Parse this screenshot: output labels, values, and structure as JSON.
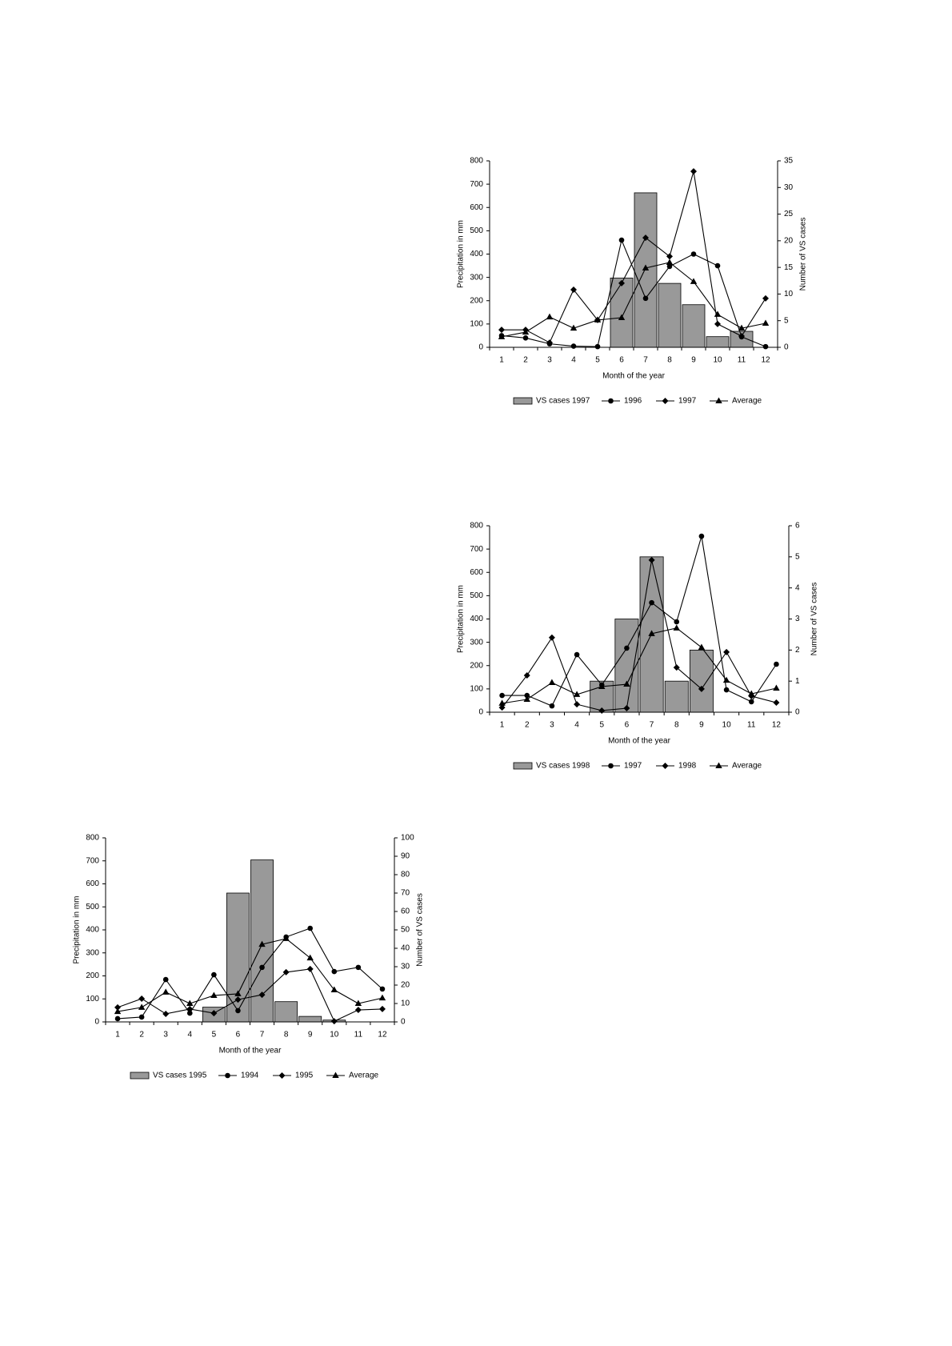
{
  "chart_data": [
    {
      "type": "combo",
      "xlabel": "Month of the year",
      "ylabel": "Precipitation in mm",
      "y2label": "Number of VS cases",
      "categories": [
        "1",
        "2",
        "3",
        "4",
        "5",
        "6",
        "7",
        "8",
        "9",
        "10",
        "11",
        "12"
      ],
      "ylim": [
        0,
        800
      ],
      "yticks": [
        0,
        100,
        200,
        300,
        400,
        500,
        600,
        700,
        800
      ],
      "y2lim": [
        0,
        35
      ],
      "y2ticks": [
        0,
        5,
        10,
        15,
        20,
        25,
        30,
        35
      ],
      "series": [
        {
          "name": "VS cases 1997",
          "kind": "bar",
          "axis": "y2",
          "color": "#999999",
          "values": [
            0,
            0,
            0,
            0,
            0,
            13,
            29,
            12,
            8,
            2,
            3,
            0
          ]
        },
        {
          "name": "1996",
          "kind": "line",
          "marker": "circle",
          "color": "#000000",
          "values": [
            50,
            40,
            15,
            5,
            3,
            460,
            210,
            347,
            400,
            350,
            45,
            3
          ]
        },
        {
          "name": "1997",
          "kind": "line",
          "marker": "diamond",
          "color": "#000000",
          "values": [
            75,
            75,
            20,
            247,
            117,
            275,
            470,
            390,
            755,
            100,
            48,
            210
          ]
        },
        {
          "name": "Average",
          "kind": "line",
          "marker": "triangle",
          "color": "#000000",
          "values": [
            45,
            65,
            130,
            82,
            117,
            127,
            340,
            364,
            282,
            141,
            82,
            103
          ]
        }
      ]
    },
    {
      "type": "combo",
      "xlabel": "Month of the year",
      "ylabel": "Precipitation in mm",
      "y2label": "Number of VS cases",
      "categories": [
        "1",
        "2",
        "3",
        "4",
        "5",
        "6",
        "7",
        "8",
        "9",
        "10",
        "11",
        "12"
      ],
      "ylim": [
        0,
        800
      ],
      "yticks": [
        0,
        100,
        200,
        300,
        400,
        500,
        600,
        700,
        800
      ],
      "y2lim": [
        0,
        6
      ],
      "y2ticks": [
        0,
        1,
        2,
        3,
        4,
        5,
        6
      ],
      "series": [
        {
          "name": "VS cases 1998",
          "kind": "bar",
          "axis": "y2",
          "color": "#999999",
          "values": [
            0,
            0,
            0,
            0,
            1,
            3,
            5,
            1,
            2,
            0,
            0,
            0
          ]
        },
        {
          "name": "1997",
          "kind": "line",
          "marker": "circle",
          "color": "#000000",
          "values": [
            72,
            72,
            27,
            247,
            117,
            275,
            470,
            388,
            755,
            96,
            45,
            206
          ]
        },
        {
          "name": "1998",
          "kind": "line",
          "marker": "diamond",
          "color": "#000000",
          "values": [
            20,
            158,
            320,
            34,
            7,
            17,
            653,
            192,
            100,
            258,
            69,
            41
          ]
        },
        {
          "name": "Average",
          "kind": "line",
          "marker": "triangle",
          "color": "#000000",
          "values": [
            38,
            55,
            127,
            76,
            110,
            120,
            337,
            361,
            278,
            137,
            79,
            103
          ]
        }
      ]
    },
    {
      "type": "combo",
      "xlabel": "Month of the year",
      "ylabel": "Precipitation in mm",
      "y2label": "Number of VS cases",
      "categories": [
        "1",
        "2",
        "3",
        "4",
        "5",
        "6",
        "7",
        "8",
        "9",
        "10",
        "11",
        "12"
      ],
      "ylim": [
        0,
        800
      ],
      "yticks": [
        0,
        100,
        200,
        300,
        400,
        500,
        600,
        700,
        800
      ],
      "y2lim": [
        0,
        100
      ],
      "y2ticks": [
        0,
        10,
        20,
        30,
        40,
        50,
        60,
        70,
        80,
        90,
        100
      ],
      "series": [
        {
          "name": "VS cases 1995",
          "kind": "bar",
          "axis": "y2",
          "color": "#999999",
          "values": [
            0,
            0,
            0,
            0,
            8,
            70,
            88,
            11,
            3,
            1,
            0,
            0
          ]
        },
        {
          "name": "1994",
          "kind": "line",
          "marker": "circle",
          "color": "#000000",
          "values": [
            14,
            21,
            184,
            38,
            205,
            49,
            237,
            369,
            407,
            219,
            237,
            143
          ]
        },
        {
          "name": "1995",
          "kind": "line",
          "marker": "diamond",
          "color": "#000000",
          "values": [
            63,
            101,
            35,
            56,
            38,
            97,
            118,
            216,
            230,
            3,
            52,
            56
          ]
        },
        {
          "name": "Average",
          "kind": "line",
          "marker": "triangle",
          "color": "#000000",
          "values": [
            45,
            63,
            129,
            80,
            115,
            122,
            337,
            362,
            278,
            139,
            80,
            104
          ]
        }
      ]
    }
  ]
}
